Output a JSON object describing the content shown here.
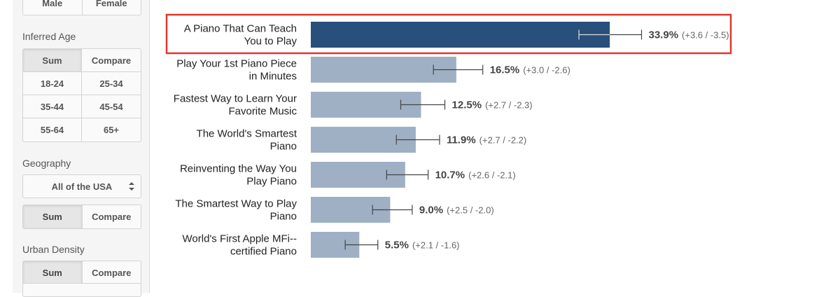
{
  "sidebar": {
    "gender": {
      "options": [
        "Male",
        "Female"
      ]
    },
    "inferred_age": {
      "label": "Inferred Age",
      "mode": [
        "Sum",
        "Compare"
      ],
      "ranges": [
        "18-24",
        "25-34",
        "35-44",
        "45-54",
        "55-64",
        "65+"
      ]
    },
    "geography": {
      "label": "Geography",
      "selected": "All of the USA",
      "mode": [
        "Sum",
        "Compare"
      ]
    },
    "urban_density": {
      "label": "Urban Density",
      "mode": [
        "Sum",
        "Compare"
      ]
    }
  },
  "colors": {
    "highlight_bar": "#28507a",
    "bar": "#9fb0c4",
    "highlight_border": "#e0372c"
  },
  "chart_data": {
    "type": "bar",
    "orientation": "horizontal",
    "categories": [
      "A Piano That Can Teach You to Play",
      "Play Your 1st Piano Piece in Minutes",
      "Fastest Way to Learn Your Favorite Music",
      "The World's Smartest Piano",
      "Reinventing the Way You Play Piano",
      "The Smartest Way to Play Piano",
      "World's First Apple MFi-- certified Piano"
    ],
    "label_lines": [
      [
        "A Piano That Can Teach",
        "You to Play"
      ],
      [
        "Play Your 1st Piano Piece",
        "in Minutes"
      ],
      [
        "Fastest Way to Learn Your",
        "Favorite Music"
      ],
      [
        "The World's Smartest",
        "Piano"
      ],
      [
        "Reinventing the Way You",
        "Play Piano"
      ],
      [
        "The Smartest Way to Play",
        "Piano"
      ],
      [
        "World's First Apple MFi--",
        "certified Piano"
      ]
    ],
    "values": [
      33.9,
      16.5,
      12.5,
      11.9,
      10.7,
      9.0,
      5.5
    ],
    "value_labels": [
      "33.9%",
      "16.5%",
      "12.5%",
      "11.9%",
      "10.7%",
      "9.0%",
      "5.5%"
    ],
    "error_plus": [
      3.6,
      3.0,
      2.7,
      2.7,
      2.6,
      2.5,
      2.1
    ],
    "error_minus": [
      3.5,
      2.6,
      2.3,
      2.2,
      2.1,
      2.0,
      1.6
    ],
    "error_labels": [
      "(+3.6 / -3.5)",
      "(+3.0 / -2.6)",
      "(+2.7 / -2.3)",
      "(+2.7 / -2.2)",
      "(+2.6 / -2.1)",
      "(+2.5 / -2.0)",
      "(+2.1 / -1.6)"
    ],
    "highlighted_index": 0,
    "unit": "%"
  }
}
